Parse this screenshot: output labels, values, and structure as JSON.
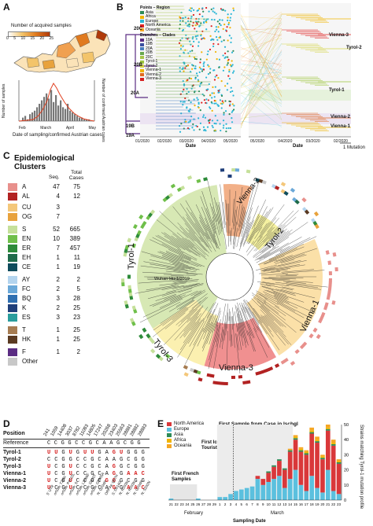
{
  "panelA": {
    "letter": "A",
    "map_legend_title": "Number of acquired samples",
    "map_scale": [
      "0",
      "5",
      "10",
      "15",
      "20",
      "25"
    ],
    "chart_ylabel_left": "Number of samples",
    "chart_ylabel_right": "Number of confirmed Austrian cases",
    "chart_xlabel": "Date of sampling/confirmed Austrian cases",
    "x_ticks": [
      "Feb",
      "March",
      "April",
      "May"
    ],
    "y_left_ticks": [
      "0",
      "10",
      "20",
      "30",
      "40",
      "50"
    ],
    "y_right_ticks": [
      "0",
      "200",
      "400",
      "600",
      "800",
      "1000"
    ]
  },
  "panelB": {
    "letter": "B",
    "legend_points_title": "Points – Region",
    "legend_points": [
      {
        "label": "Asia",
        "color": "#2e8b57"
      },
      {
        "label": "Africa",
        "color": "#f0b400"
      },
      {
        "label": "Europe",
        "color": "#29b6d6"
      },
      {
        "label": "North America",
        "color": "#e02020"
      },
      {
        "label": "Oceania",
        "color": "#f5a623"
      }
    ],
    "legend_branches_title": "Branches – Clades",
    "legend_branches": [
      {
        "label": "19A",
        "color": "#5b2c83"
      },
      {
        "label": "19B",
        "color": "#3b4fa0"
      },
      {
        "label": "20A",
        "color": "#4a7dbf"
      },
      {
        "label": "20B",
        "color": "#6aa84f"
      },
      {
        "label": "20C",
        "color": "#a8c64a"
      },
      {
        "label": "Tyrol-1",
        "color": "#9bc53d"
      },
      {
        "label": "Tyrol-2",
        "color": "#d4d44a"
      },
      {
        "label": "Vienna-1",
        "color": "#f0b400"
      },
      {
        "label": "Vienna-2",
        "color": "#e06a20"
      },
      {
        "label": "Vienna-3",
        "color": "#d62020"
      }
    ],
    "clade_labels": [
      "20C",
      "20B",
      "20A",
      "19B",
      "19A"
    ],
    "right_labels": [
      "Vienna-3",
      "Tyrol-2",
      "Tyrol-1",
      "Vienna-2",
      "Vienna-1"
    ],
    "x_ticks_left": [
      "01/2020",
      "02/2020",
      "03/2020",
      "04/2020",
      "05/2020"
    ],
    "x_ticks_right": [
      "05/2020",
      "04/2020",
      "03/2020",
      "02/2020"
    ],
    "xlabel": "Date",
    "scale_label": "1 Mutation"
  },
  "panelC": {
    "letter": "C",
    "title_line1": "Epidemiological",
    "title_line2": "Clusters",
    "col_seq": "Seq.",
    "col_total": "Total Cases",
    "rows": [
      {
        "code": "A",
        "seq": "47",
        "total": "75",
        "color": "#e8908c"
      },
      {
        "code": "AL",
        "seq": "4",
        "total": "12",
        "color": "#b22222"
      },
      {
        "code": "CU",
        "seq": "3",
        "total": "",
        "color": "#f4c77a"
      },
      {
        "code": "OG",
        "seq": "7",
        "total": "",
        "color": "#e8a23c"
      },
      {
        "code": "S",
        "seq": "52",
        "total": "665",
        "color": "#c5e09a"
      },
      {
        "code": "EN",
        "seq": "10",
        "total": "389",
        "color": "#6fbf4a"
      },
      {
        "code": "ER",
        "seq": "7",
        "total": "457",
        "color": "#2e8b3a"
      },
      {
        "code": "EH",
        "seq": "1",
        "total": "11",
        "color": "#1f6b4a"
      },
      {
        "code": "CE",
        "seq": "1",
        "total": "19",
        "color": "#0f4c5c"
      },
      {
        "code": "AY",
        "seq": "2",
        "total": "2",
        "color": "#b3d4ee"
      },
      {
        "code": "FC",
        "seq": "2",
        "total": "5",
        "color": "#6aa8d8"
      },
      {
        "code": "BQ",
        "seq": "3",
        "total": "28",
        "color": "#2f6fb0"
      },
      {
        "code": "K",
        "seq": "2",
        "total": "25",
        "color": "#1f3f7a"
      },
      {
        "code": "ES",
        "seq": "3",
        "total": "23",
        "color": "#2a9d9d"
      },
      {
        "code": "T",
        "seq": "1",
        "total": "25",
        "color": "#a67c52"
      },
      {
        "code": "HK",
        "seq": "1",
        "total": "25",
        "color": "#5a3a22"
      },
      {
        "code": "F",
        "seq": "1",
        "total": "2",
        "color": "#5b2c83"
      },
      {
        "code": "Other",
        "seq": "",
        "total": "",
        "color": "#c8c8c8"
      }
    ],
    "sectors": [
      "Tyrol-1",
      "Vienna-2",
      "Tyrol-2",
      "Vienna-1",
      "Vienna-3",
      "Tyrol-3"
    ],
    "root_label": "Wuhan-Hu-1/2019"
  },
  "panelD": {
    "letter": "D",
    "position_label": "Position",
    "positions": [
      "241",
      "1059",
      "14408",
      "3037",
      "8782",
      "11083",
      "14805",
      "17247",
      "20268",
      "23403",
      "25563",
      "28881",
      "28882",
      "28883"
    ],
    "reference_label": "Reference",
    "reference_seq": "C C G G C C G C A A G C G G",
    "rows": [
      {
        "name": "Tyrol-1",
        "bases": [
          "U",
          "U",
          "G",
          "U",
          "G",
          "U",
          "U",
          "G",
          "A",
          "G",
          "U",
          "G",
          "G",
          "G"
        ],
        "red": [
          0,
          1,
          3,
          5,
          6,
          9,
          10
        ]
      },
      {
        "name": "Tyrol-2",
        "bases": [
          "C",
          "C",
          "G",
          "G",
          "C",
          "C",
          "G",
          "C",
          "A",
          "A",
          "G",
          "C",
          "G",
          "G"
        ],
        "red": []
      },
      {
        "name": "Tyrol-3",
        "bases": [
          "U",
          "C",
          "G",
          "U",
          "C",
          "C",
          "G",
          "C",
          "A",
          "G",
          "G",
          "C",
          "G",
          "G"
        ],
        "red": [
          0,
          3,
          9
        ]
      },
      {
        "name": "Vienna-1",
        "bases": [
          "U",
          "C",
          "G",
          "U",
          "C",
          "C",
          "G",
          "C",
          "A",
          "G",
          "G",
          "A",
          "A",
          "C"
        ],
        "red": [
          0,
          3,
          9,
          11,
          12,
          13
        ]
      },
      {
        "name": "Vienna-2",
        "bases": [
          "U",
          "C",
          "G",
          "U",
          "C",
          "C",
          "G",
          "C",
          "G",
          "G",
          "G",
          "C",
          "G",
          "G"
        ],
        "red": [
          0,
          3,
          8,
          9
        ]
      },
      {
        "name": "Vienna-3",
        "bases": [
          "U",
          "C",
          "G",
          "U",
          "C",
          "C",
          "G",
          "C",
          "A",
          "G",
          "G",
          "A",
          "A",
          "C"
        ],
        "red": [
          0,
          3,
          9,
          11,
          12,
          13
        ]
      }
    ],
    "annotations": [
      "5' UTR",
      "orf1ab: T265I",
      "orf1ab: P4715L",
      "orf1ab: S",
      "orf1ab: L3606F",
      "orf1ab: I2230T",
      "orf1ab: G5965A",
      "N: G204R",
      "ORF3a: Q57H",
      "S: D614G",
      "N: R203K",
      "N: R203K",
      "N: G204R",
      "N: S202N"
    ]
  },
  "panelE": {
    "letter": "E",
    "legend": [
      {
        "label": "North America",
        "color": "#d9383a"
      },
      {
        "label": "Europe",
        "color": "#5bc0de"
      },
      {
        "label": "Asia",
        "color": "#2e8b57"
      },
      {
        "label": "Africa",
        "color": "#f0b400"
      },
      {
        "label": "Oceania",
        "color": "#f5a623"
      }
    ],
    "annot_1": "First Sample from Case in Ischgl",
    "annot_2": "First Icelandic Tourist Cases",
    "annot_3": "First French Samples",
    "ylabel": "Strains matching Tyrol-1 mutation profile",
    "xlabel": "Sampling Date",
    "month_feb": "February",
    "month_mar": "March",
    "y_ticks": [
      "0",
      "10",
      "20",
      "30",
      "40",
      "50"
    ]
  },
  "chart_data": {
    "type": "bar",
    "title": "",
    "xlabel": "Sampling Date",
    "ylabel": "Strains matching Tyrol-1 mutation profile",
    "ylim": [
      0,
      50
    ],
    "categories": [
      "Feb-21",
      "Feb-22",
      "Feb-23",
      "Feb-24",
      "Feb-25",
      "Feb-26",
      "Feb-27",
      "Feb-28",
      "Feb-29",
      "Mar-1",
      "Mar-2",
      "Mar-3",
      "Mar-4",
      "Mar-5",
      "Mar-6",
      "Mar-7",
      "Mar-8",
      "Mar-9",
      "Mar-10",
      "Mar-11",
      "Mar-12",
      "Mar-13",
      "Mar-14",
      "Mar-15",
      "Mar-16",
      "Mar-17",
      "Mar-18",
      "Mar-19",
      "Mar-20",
      "Mar-21",
      "Mar-22",
      "Mar-23"
    ],
    "series": [
      {
        "name": "Europe",
        "values": [
          1,
          0,
          0,
          0,
          0,
          1,
          0,
          0,
          0,
          2,
          2,
          4,
          6,
          7,
          8,
          9,
          14,
          10,
          12,
          14,
          16,
          8,
          14,
          20,
          10,
          6,
          16,
          8,
          5,
          20,
          6,
          4
        ]
      },
      {
        "name": "North America",
        "values": [
          0,
          0,
          0,
          0,
          0,
          0,
          0,
          0,
          0,
          0,
          0,
          0,
          0,
          0,
          0,
          0,
          2,
          4,
          6,
          8,
          10,
          12,
          18,
          20,
          22,
          24,
          28,
          30,
          22,
          26,
          30,
          20
        ]
      },
      {
        "name": "Asia",
        "values": [
          0,
          0,
          0,
          0,
          0,
          0,
          0,
          0,
          0,
          0,
          0,
          0,
          0,
          0,
          0,
          0,
          0,
          0,
          1,
          1,
          1,
          1,
          1,
          1,
          1,
          1,
          1,
          1,
          1,
          1,
          1,
          1
        ]
      },
      {
        "name": "Africa",
        "values": [
          0,
          0,
          0,
          0,
          0,
          0,
          0,
          0,
          0,
          0,
          0,
          0,
          0,
          0,
          0,
          0,
          0,
          0,
          0,
          0,
          0,
          0,
          0,
          1,
          1,
          1,
          1,
          1,
          1,
          1,
          1,
          1
        ]
      },
      {
        "name": "Oceania",
        "values": [
          0,
          0,
          0,
          0,
          0,
          0,
          0,
          0,
          0,
          0,
          0,
          0,
          0,
          0,
          0,
          0,
          0,
          0,
          0,
          0,
          0,
          0,
          1,
          1,
          1,
          1,
          2,
          2,
          1,
          2,
          2,
          1
        ]
      }
    ]
  }
}
